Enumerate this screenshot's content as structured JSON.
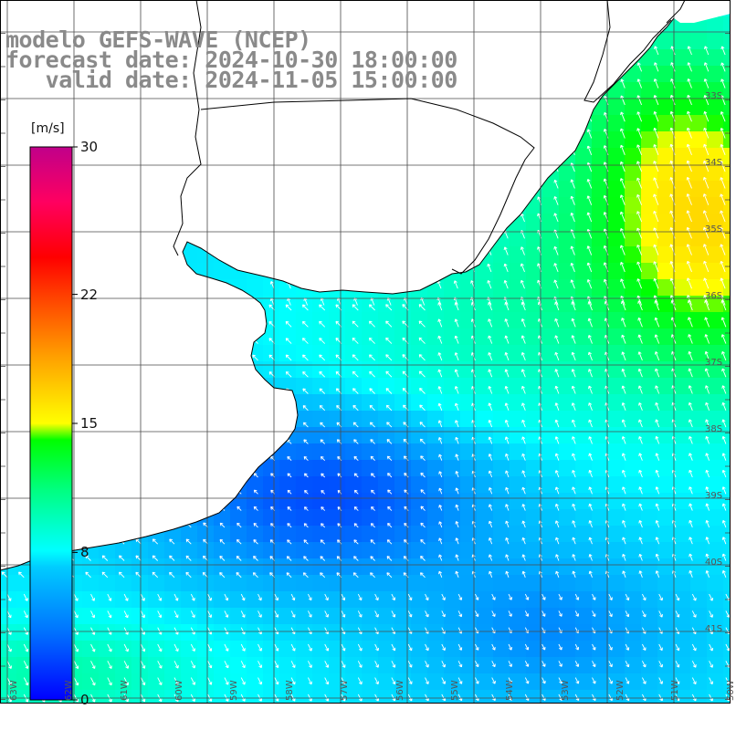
{
  "title": {
    "model": "modelo GEFS-WAVE (NCEP)",
    "forecast": "forecast date: 2024-10-30 18:00:00",
    "valid": "   valid date: 2024-11-05 15:00:00"
  },
  "colorbar": {
    "unit": "[m/s]",
    "ticks": [
      {
        "label": "30",
        "value": 30
      },
      {
        "label": "22",
        "value": 22
      },
      {
        "label": "15",
        "value": 15
      },
      {
        "label": "8",
        "value": 8
      },
      {
        "label": "0",
        "value": 0
      }
    ],
    "stops": [
      "#0000ff",
      "#00aaff",
      "#00ffff",
      "#00ff40",
      "#00ff00",
      "#ffff00",
      "#ff8000",
      "#ff0000",
      "#ff0080",
      "#c000a0"
    ]
  },
  "lat_labels": [
    "33S",
    "34S",
    "35S",
    "36S",
    "37S",
    "38S",
    "39S",
    "40S",
    "41S"
  ],
  "lon_labels": [
    "63W",
    "62W",
    "61W",
    "60W",
    "59W",
    "58W",
    "57W",
    "56W",
    "55W",
    "54W",
    "53W",
    "52W",
    "51W",
    "50W"
  ],
  "colors": {
    "land": "#ffffff",
    "grid": "#4a4a4a",
    "coast": "#000000",
    "arrow": "#ffffff"
  }
}
